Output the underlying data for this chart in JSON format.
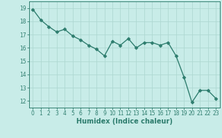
{
  "x": [
    0,
    1,
    2,
    3,
    4,
    5,
    6,
    7,
    8,
    9,
    10,
    11,
    12,
    13,
    14,
    15,
    16,
    17,
    18,
    19,
    20,
    21,
    22,
    23
  ],
  "y": [
    18.9,
    18.1,
    17.6,
    17.2,
    17.4,
    16.9,
    16.6,
    16.2,
    15.9,
    15.4,
    16.5,
    16.2,
    16.7,
    16.0,
    16.4,
    16.4,
    16.2,
    16.4,
    15.4,
    13.8,
    11.9,
    12.8,
    12.8,
    12.2
  ],
  "line_color": "#2e7d6e",
  "marker": "D",
  "marker_size": 2.5,
  "line_width": 1.0,
  "xlabel": "Humidex (Indice chaleur)",
  "xlabel_fontsize": 7,
  "xlabel_fontweight": "bold",
  "ylabel_ticks": [
    12,
    13,
    14,
    15,
    16,
    17,
    18,
    19
  ],
  "xlim": [
    -0.5,
    23.5
  ],
  "ylim": [
    11.5,
    19.5
  ],
  "bg_color": "#c8ece8",
  "grid_color": "#aed8d2",
  "tick_fontsize": 5.5,
  "tick_color": "#2e7d6e"
}
